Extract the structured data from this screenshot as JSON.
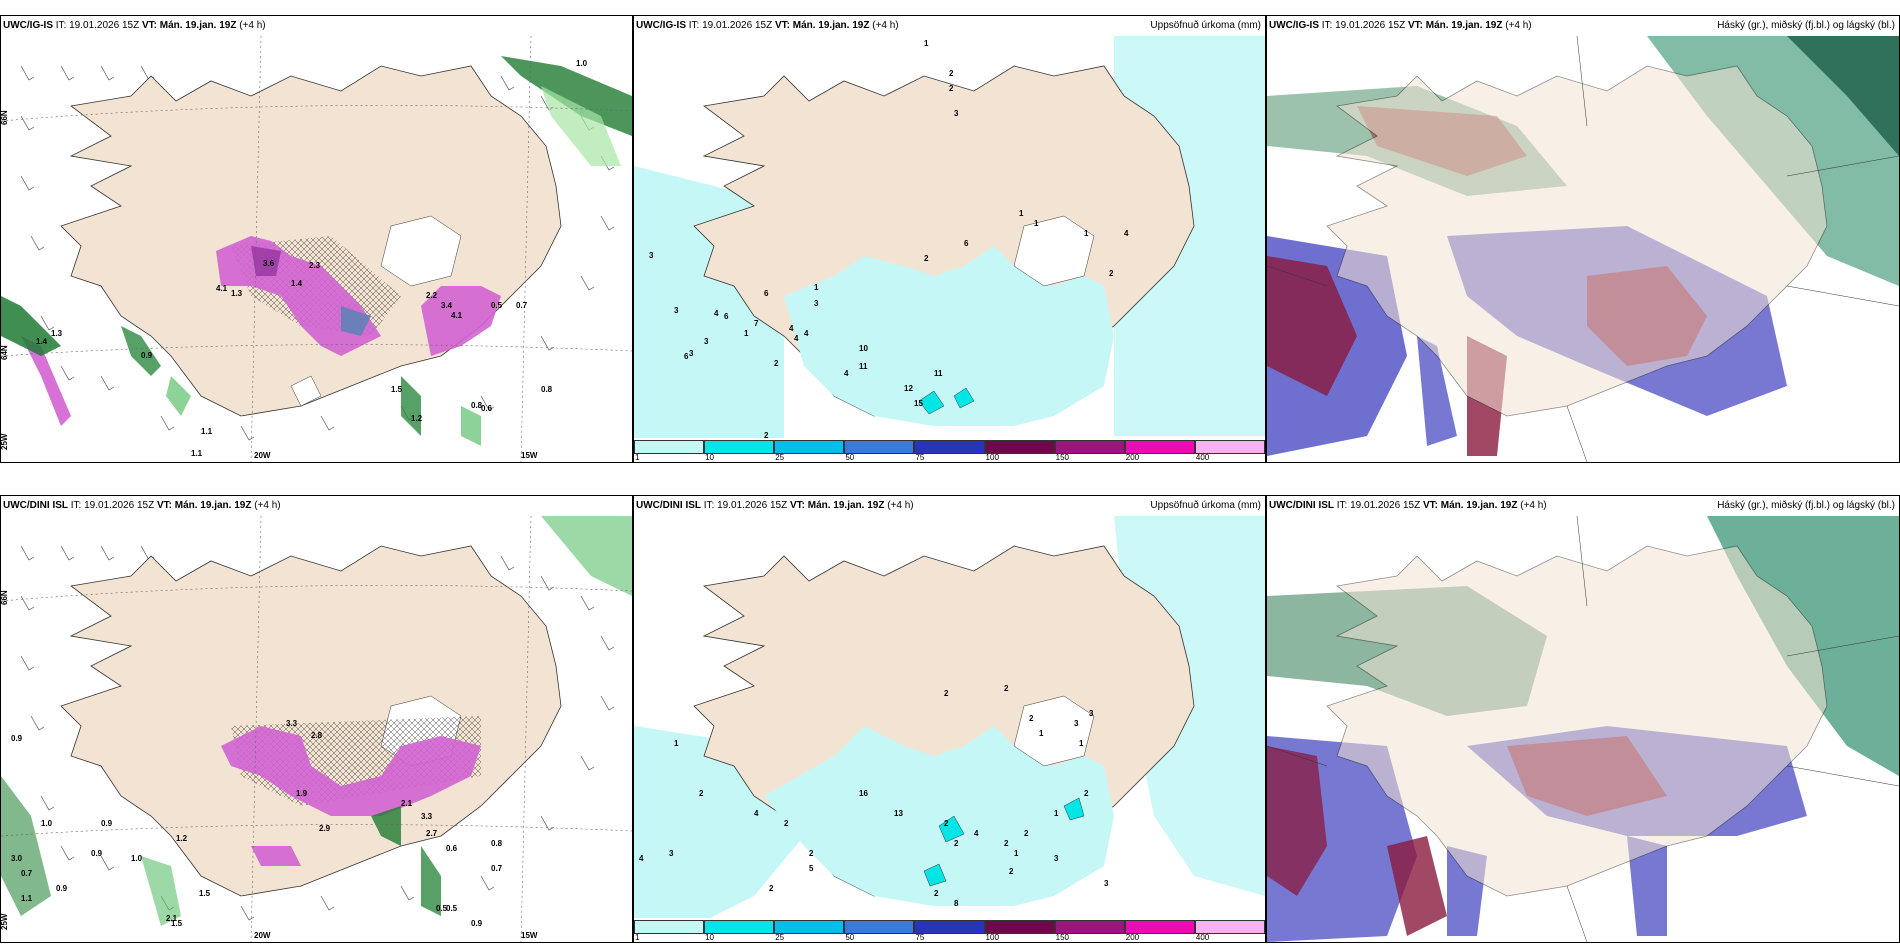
{
  "panels": [
    {
      "model": "UWC/IG-IS",
      "it_label": "IT:",
      "it_value": "19.01.2026 15Z",
      "vt_label": "VT:",
      "vt_value": "Mán. 19.jan. 19Z",
      "lead": "(+4 h)",
      "right_title": ""
    },
    {
      "model": "UWC/IG-IS",
      "it_label": "IT:",
      "it_value": "19.01.2026 15Z",
      "vt_label": "VT:",
      "vt_value": "Mán. 19.jan. 19Z",
      "lead": "(+4 h)",
      "right_title": "Uppsöfnuð úrkoma (mm)"
    },
    {
      "model": "UWC/IG-IS",
      "it_label": "IT:",
      "it_value": "19.01.2026 15Z",
      "vt_label": "VT:",
      "vt_value": "Mán. 19.jan. 19Z",
      "lead": "(+4 h)",
      "right_title": "Háský (gr.), miðský (fj.bl.) og lágský (bl.)"
    },
    {
      "model": "UWC/DINI ISL",
      "it_label": "IT:",
      "it_value": "19.01.2026 15Z",
      "vt_label": "VT:",
      "vt_value": "Mán. 19.jan. 19Z",
      "lead": "(+4 h)",
      "right_title": ""
    },
    {
      "model": "UWC/DINI ISL",
      "it_label": "IT:",
      "it_value": "19.01.2026 15Z",
      "vt_label": "VT:",
      "vt_value": "Mán. 19.jan. 19Z",
      "lead": "(+4 h)",
      "right_title": "Uppsöfnuð úrkoma (mm)"
    },
    {
      "model": "UWC/DINI ISL",
      "it_label": "IT:",
      "it_value": "19.01.2026 15Z",
      "vt_label": "VT:",
      "vt_value": "Mán. 19.jan. 19Z",
      "lead": "(+4 h)",
      "right_title": "Háský (gr.), miðský (fj.bl.) og lágský (bl.)"
    }
  ],
  "legend": {
    "labels": [
      "1",
      "10",
      "25",
      "50",
      "75",
      "100",
      "150",
      "200",
      "400"
    ],
    "colors": [
      "#c6f7f7",
      "#00e6e6",
      "#00c0e8",
      "#3c78e0",
      "#2a34b8",
      "#6a0a4a",
      "#a0147a",
      "#f00ab4",
      "#f5b4ef"
    ]
  },
  "axis": {
    "lat66": "66N",
    "lat64": "64N",
    "lon20": "20W",
    "lon15": "15W",
    "lon25": "25W"
  },
  "labels_top1": [
    "3.6",
    "2.3",
    "1.4",
    "4.1",
    "1.3",
    "2.2",
    "3.4",
    "4.1",
    "0.5",
    "0.7",
    "0.9",
    "1.2",
    "1.1",
    "1.1",
    "0.6",
    "0.8",
    "1.5",
    "0.8",
    "1.0",
    "1.3",
    "1.4"
  ],
  "labels_top2": [
    "3",
    "3",
    "3",
    "6",
    "2",
    "6",
    "1",
    "3",
    "4",
    "7",
    "4",
    "4",
    "4",
    "1",
    "6",
    "3",
    "2",
    "10",
    "11",
    "4",
    "11",
    "12",
    "15",
    "2",
    "1",
    "2",
    "2",
    "3",
    "1",
    "1",
    "2",
    "4",
    "6",
    "1"
  ],
  "labels_bot1": [
    "3.3",
    "2.8",
    "1.9",
    "2.9",
    "2.1",
    "3.3",
    "2.7",
    "0.6",
    "0.9",
    "1.0",
    "0.9",
    "0.9",
    "1.2",
    "1.0",
    "0.7",
    "0.9",
    "1.5",
    "2.1",
    "1.5",
    "0.8",
    "0.7",
    "0.9",
    "0.5",
    "0.5",
    "3.0",
    "1.1"
  ],
  "labels_bot2": [
    "2",
    "2",
    "2",
    "1",
    "3",
    "3",
    "1",
    "1",
    "2",
    "2",
    "4",
    "4",
    "3",
    "2",
    "2",
    "5",
    "16",
    "13",
    "2",
    "4",
    "2",
    "2",
    "2",
    "8",
    "1",
    "2",
    "2",
    "3",
    "1",
    "2",
    "3"
  ]
}
